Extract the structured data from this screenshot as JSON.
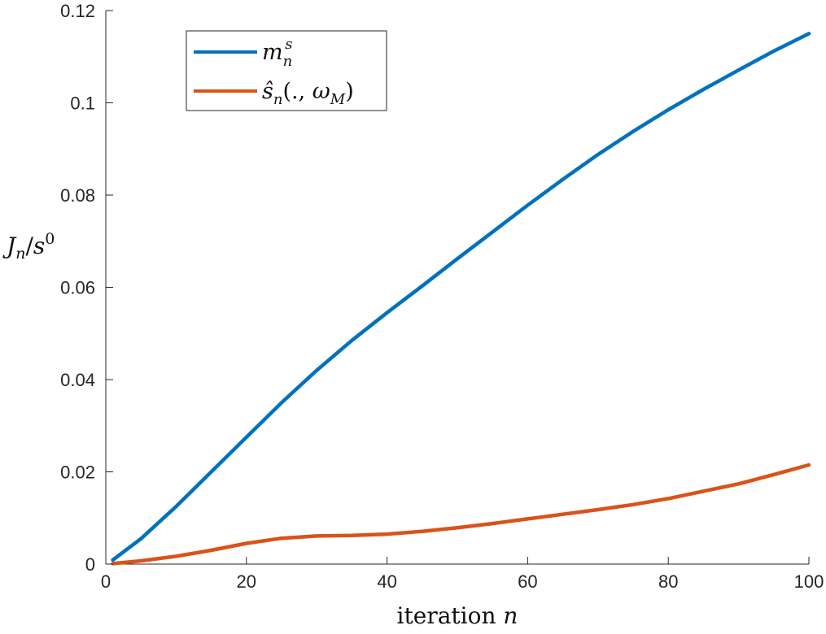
{
  "chart_data": {
    "type": "line",
    "xlabel": "iteration n",
    "ylabel": "J_n/s^0",
    "xlim": [
      0,
      100
    ],
    "ylim": [
      0,
      0.12
    ],
    "x_ticks": [
      0,
      20,
      40,
      60,
      80,
      100
    ],
    "y_ticks": [
      0,
      0.02,
      0.04,
      0.06,
      0.08,
      0.1,
      0.12
    ],
    "x_tick_labels": [
      "0",
      "20",
      "40",
      "60",
      "80",
      "100"
    ],
    "y_tick_labels": [
      "0",
      "0.02",
      "0.04",
      "0.06",
      "0.08",
      "0.1",
      "0.12"
    ],
    "grid": false,
    "legend_position": "top-left",
    "series": [
      {
        "name": "m_n^s",
        "color": "#0072BD",
        "x": [
          1,
          5,
          10,
          15,
          20,
          25,
          30,
          35,
          40,
          45,
          50,
          55,
          60,
          65,
          70,
          75,
          80,
          85,
          90,
          95,
          100
        ],
        "y": [
          0.0009,
          0.0055,
          0.0125,
          0.02,
          0.0275,
          0.035,
          0.042,
          0.0485,
          0.0545,
          0.0603,
          0.0662,
          0.072,
          0.0778,
          0.0834,
          0.0888,
          0.0938,
          0.0985,
          0.1029,
          0.1071,
          0.1112,
          0.115
        ]
      },
      {
        "name": "ŝ_n(., ω_M)",
        "color": "#D95319",
        "x": [
          1,
          5,
          10,
          15,
          20,
          25,
          30,
          35,
          40,
          45,
          50,
          55,
          60,
          65,
          70,
          75,
          80,
          85,
          90,
          95,
          100
        ],
        "y": [
          0.0001,
          0.0007,
          0.0017,
          0.003,
          0.0045,
          0.0056,
          0.0061,
          0.0062,
          0.0065,
          0.0071,
          0.0079,
          0.0088,
          0.0098,
          0.0108,
          0.0118,
          0.0129,
          0.0142,
          0.0158,
          0.0174,
          0.0194,
          0.0215
        ]
      }
    ]
  }
}
